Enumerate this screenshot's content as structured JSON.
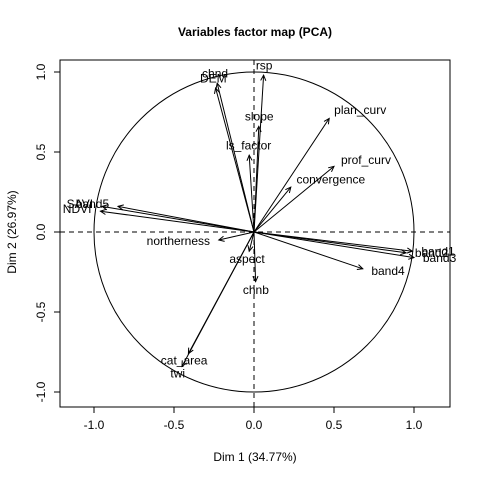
{
  "chart_data": {
    "type": "scatter",
    "title": "Variables factor map (PCA)",
    "xlabel": "Dim 1 (34.77%)",
    "ylabel": "Dim 2 (26.97%)",
    "xlim": [
      -1.0,
      1.0
    ],
    "ylim": [
      -1.0,
      1.0
    ],
    "xticks": [
      -1.0,
      -0.5,
      0.0,
      0.5,
      1.0
    ],
    "yticks": [
      -1.0,
      -0.5,
      0.0,
      0.5,
      1.0
    ],
    "xtick_labels": [
      "-1.0",
      "-0.5",
      "0.0",
      "0.5",
      "1.0"
    ],
    "ytick_labels": [
      "-1.0",
      "-0.5",
      "0.0",
      "0.5",
      "1.0"
    ],
    "unit_circle": true,
    "reference_lines": "dashed at x=0 and y=0",
    "variables": [
      {
        "name": "rsp",
        "x": 0.06,
        "y": 0.98
      },
      {
        "name": "chnd",
        "x": -0.23,
        "y": 0.93
      },
      {
        "name": "DEM",
        "x": -0.24,
        "y": 0.9
      },
      {
        "name": "slope",
        "x": 0.03,
        "y": 0.66
      },
      {
        "name": "plan_curv",
        "x": 0.47,
        "y": 0.71
      },
      {
        "name": "ls_factor",
        "x": -0.03,
        "y": 0.48
      },
      {
        "name": "prof_curv",
        "x": 0.5,
        "y": 0.41
      },
      {
        "name": "convergence",
        "x": 0.23,
        "y": 0.28
      },
      {
        "name": "SAVI",
        "x": -0.95,
        "y": 0.16
      },
      {
        "name": "band5",
        "x": -0.85,
        "y": 0.16
      },
      {
        "name": "NDVI",
        "x": -0.96,
        "y": 0.13
      },
      {
        "name": "northerness",
        "x": -0.22,
        "y": -0.05
      },
      {
        "name": "aspect",
        "x": -0.03,
        "y": -0.12
      },
      {
        "name": "band1",
        "x": 0.99,
        "y": -0.12
      },
      {
        "name": "band2",
        "x": 0.95,
        "y": -0.13
      },
      {
        "name": "band3",
        "x": 1.0,
        "y": -0.16
      },
      {
        "name": "band4",
        "x": 0.68,
        "y": -0.23
      },
      {
        "name": "chnb",
        "x": 0.01,
        "y": -0.31
      },
      {
        "name": "cat_area",
        "x": -0.41,
        "y": -0.76
      },
      {
        "name": "twi",
        "x": -0.45,
        "y": -0.84
      }
    ]
  }
}
